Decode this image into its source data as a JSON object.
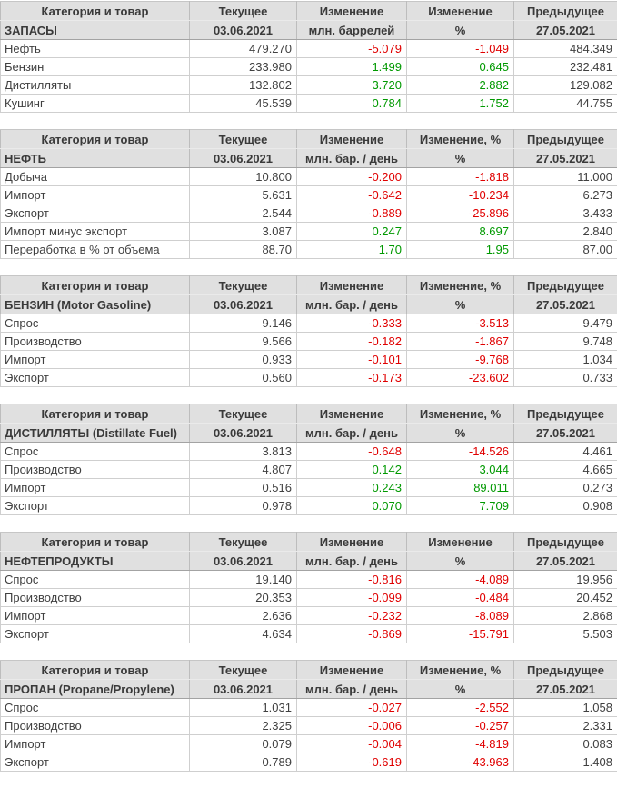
{
  "colors": {
    "negative_value": "#e00000",
    "positive_value": "#009900",
    "header_bg": "#e0e0e0"
  },
  "common": {
    "col_category": "Категория и товар",
    "col_current": "Текущее",
    "col_change": "Изменение",
    "col_previous": "Предыдущее",
    "date_current": "03.06.2021",
    "date_previous": "27.05.2021",
    "pct_sign": "%"
  },
  "tables": [
    {
      "title": "ЗАПАСЫ",
      "col_change_pct": "Изменение",
      "unit": "млн. баррелей",
      "rows": [
        {
          "label": "Нефть",
          "current": "479.270",
          "change": "-5.079",
          "change_pct": "-1.049",
          "previous": "484.349",
          "cls": "neg"
        },
        {
          "label": "Бензин",
          "current": "233.980",
          "change": "1.499",
          "change_pct": "0.645",
          "previous": "232.481",
          "cls": "pos"
        },
        {
          "label": "Дистилляты",
          "current": "132.802",
          "change": "3.720",
          "change_pct": "2.882",
          "previous": "129.082",
          "cls": "pos"
        },
        {
          "label": "Кушинг",
          "current": "45.539",
          "change": "0.784",
          "change_pct": "1.752",
          "previous": "44.755",
          "cls": "pos"
        }
      ]
    },
    {
      "title": "НЕФТЬ",
      "col_change_pct": "Изменение, %",
      "unit": "млн. бар. / день",
      "rows": [
        {
          "label": "Добыча",
          "current": "10.800",
          "change": "-0.200",
          "change_pct": "-1.818",
          "previous": "11.000",
          "cls": "neg"
        },
        {
          "label": "Импорт",
          "current": "5.631",
          "change": "-0.642",
          "change_pct": "-10.234",
          "previous": "6.273",
          "cls": "neg"
        },
        {
          "label": "Экспорт",
          "current": "2.544",
          "change": "-0.889",
          "change_pct": "-25.896",
          "previous": "3.433",
          "cls": "neg"
        },
        {
          "label": "Импорт минус экспорт",
          "current": "3.087",
          "change": "0.247",
          "change_pct": "8.697",
          "previous": "2.840",
          "cls": "pos"
        },
        {
          "label": "Переработка в % от объема",
          "current": "88.70",
          "change": "1.70",
          "change_pct": "1.95",
          "previous": "87.00",
          "cls": "pos"
        }
      ]
    },
    {
      "title": "БЕНЗИН (Motor Gasoline)",
      "col_change_pct": "Изменение, %",
      "unit": "млн. бар. / день",
      "rows": [
        {
          "label": "Спрос",
          "current": "9.146",
          "change": "-0.333",
          "change_pct": "-3.513",
          "previous": "9.479",
          "cls": "neg"
        },
        {
          "label": "Производство",
          "current": "9.566",
          "change": "-0.182",
          "change_pct": "-1.867",
          "previous": "9.748",
          "cls": "neg"
        },
        {
          "label": "Импорт",
          "current": "0.933",
          "change": "-0.101",
          "change_pct": "-9.768",
          "previous": "1.034",
          "cls": "neg"
        },
        {
          "label": "Экспорт",
          "current": "0.560",
          "change": "-0.173",
          "change_pct": "-23.602",
          "previous": "0.733",
          "cls": "neg"
        }
      ]
    },
    {
      "title": "ДИСТИЛЛЯТЫ (Distillate Fuel)",
      "col_change_pct": "Изменение, %",
      "unit": "млн. бар. / день",
      "rows": [
        {
          "label": "Спрос",
          "current": "3.813",
          "change": "-0.648",
          "change_pct": "-14.526",
          "previous": "4.461",
          "cls": "neg"
        },
        {
          "label": "Производство",
          "current": "4.807",
          "change": "0.142",
          "change_pct": "3.044",
          "previous": "4.665",
          "cls": "pos"
        },
        {
          "label": "Импорт",
          "current": "0.516",
          "change": "0.243",
          "change_pct": "89.011",
          "previous": "0.273",
          "cls": "pos"
        },
        {
          "label": "Экспорт",
          "current": "0.978",
          "change": "0.070",
          "change_pct": "7.709",
          "previous": "0.908",
          "cls": "pos"
        }
      ]
    },
    {
      "title": "НЕФТЕПРОДУКТЫ",
      "col_change_pct": "Изменение",
      "unit": "млн. бар. / день",
      "rows": [
        {
          "label": "Спрос",
          "current": "19.140",
          "change": "-0.816",
          "change_pct": "-4.089",
          "previous": "19.956",
          "cls": "neg"
        },
        {
          "label": "Производство",
          "current": "20.353",
          "change": "-0.099",
          "change_pct": "-0.484",
          "previous": "20.452",
          "cls": "neg"
        },
        {
          "label": "Импорт",
          "current": "2.636",
          "change": "-0.232",
          "change_pct": "-8.089",
          "previous": "2.868",
          "cls": "neg"
        },
        {
          "label": "Экспорт",
          "current": "4.634",
          "change": "-0.869",
          "change_pct": "-15.791",
          "previous": "5.503",
          "cls": "neg"
        }
      ]
    },
    {
      "title": "ПРОПАН (Propane/Propylene)",
      "col_change_pct": "Изменение, %",
      "unit": "млн. бар. / день",
      "rows": [
        {
          "label": "Спрос",
          "current": "1.031",
          "change": "-0.027",
          "change_pct": "-2.552",
          "previous": "1.058",
          "cls": "neg"
        },
        {
          "label": "Производство",
          "current": "2.325",
          "change": "-0.006",
          "change_pct": "-0.257",
          "previous": "2.331",
          "cls": "neg"
        },
        {
          "label": "Импорт",
          "current": "0.079",
          "change": "-0.004",
          "change_pct": "-4.819",
          "previous": "0.083",
          "cls": "neg"
        },
        {
          "label": "Экспорт",
          "current": "0.789",
          "change": "-0.619",
          "change_pct": "-43.963",
          "previous": "1.408",
          "cls": "neg"
        }
      ]
    }
  ]
}
